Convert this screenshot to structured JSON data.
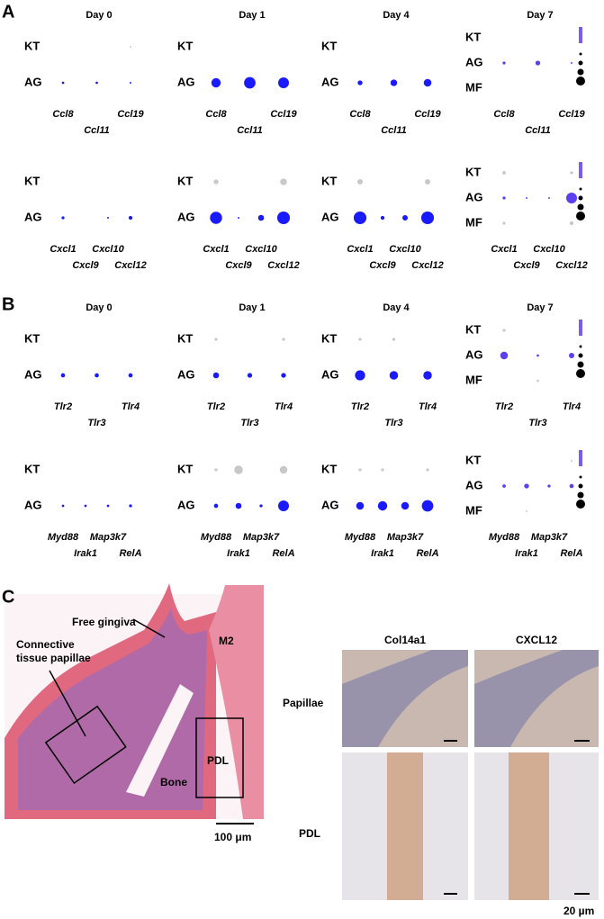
{
  "panels": [
    {
      "label": "A",
      "days": [
        "Day 0",
        "Day 1",
        "Day 4",
        "Day 7"
      ],
      "groups": [
        {
          "genes": [
            "Ccl8",
            "Ccl11",
            "Ccl19"
          ],
          "plots": [
            {
              "rows": [
                "KT",
                "AG"
              ],
              "row_colors": [
                "#c8c8c8",
                "#1a1aff"
              ],
              "pct": [
                [
                  0,
                  0,
                  1
                ],
                [
                  2,
                  2,
                  1
                ]
              ]
            },
            {
              "rows": [
                "KT",
                "AG"
              ],
              "row_colors": [
                "#c8c8c8",
                "#1a1aff"
              ],
              "pct": [
                [
                  0,
                  0,
                  0
                ],
                [
                  30,
                  45,
                  40
                ]
              ]
            },
            {
              "rows": [
                "KT",
                "AG"
              ],
              "row_colors": [
                "#c8c8c8",
                "#1a1aff"
              ],
              "pct": [
                [
                  0,
                  0,
                  0
                ],
                [
                  8,
                  15,
                  20
                ]
              ]
            },
            {
              "rows": [
                "KT",
                "AG",
                "MF"
              ],
              "row_colors": [
                "#c8c8c8",
                "#5b3ff0",
                "#c8c8c8"
              ],
              "pct": [
                [
                  0,
                  0,
                  0
                ],
                [
                  3,
                  8,
                  1
                ],
                [
                  0,
                  0,
                  0
                ]
              ]
            }
          ]
        },
        {
          "genes": [
            "Cxcl1",
            "Cxcl9",
            "Cxcl10",
            "Cxcl12"
          ],
          "plots": [
            {
              "rows": [
                "KT",
                "AG"
              ],
              "row_colors": [
                "#c8c8c8",
                "#1a1aff"
              ],
              "pct": [
                [
                  0,
                  0,
                  0,
                  0
                ],
                [
                  3,
                  0,
                  1,
                  5
                ]
              ]
            },
            {
              "rows": [
                "KT",
                "AG"
              ],
              "row_colors": [
                "#c8c8c8",
                "#1a1aff"
              ],
              "pct": [
                [
                  8,
                  0,
                  0,
                  15
                ],
                [
                  50,
                  1,
                  12,
                  55
                ]
              ]
            },
            {
              "rows": [
                "KT",
                "AG"
              ],
              "row_colors": [
                "#c8c8c8",
                "#1a1aff"
              ],
              "pct": [
                [
                  10,
                  0,
                  0,
                  10
                ],
                [
                  55,
                  5,
                  10,
                  55
                ]
              ]
            },
            {
              "rows": [
                "KT",
                "AG",
                "MF"
              ],
              "row_colors": [
                "#c8c8c8",
                "#5b3ff0",
                "#c8c8c8"
              ],
              "pct": [
                [
                  4,
                  0,
                  0,
                  3
                ],
                [
                  3,
                  1,
                  1,
                  40
                ],
                [
                  3,
                  0,
                  0,
                  5
                ]
              ]
            }
          ]
        }
      ]
    },
    {
      "label": "B",
      "days": [
        "Day 0",
        "Day 1",
        "Day 4",
        "Day 7"
      ],
      "groups": [
        {
          "genes": [
            "Tlr2",
            "Tlr3",
            "Tlr4"
          ],
          "plots": [
            {
              "rows": [
                "KT",
                "AG"
              ],
              "row_colors": [
                "#c8c8c8",
                "#1a1aff"
              ],
              "pct": [
                [
                  0,
                  0,
                  0
                ],
                [
                  6,
                  6,
                  6
                ]
              ]
            },
            {
              "rows": [
                "KT",
                "AG"
              ],
              "row_colors": [
                "#c8c8c8",
                "#1a1aff"
              ],
              "pct": [
                [
                  3,
                  0,
                  3
                ],
                [
                  12,
                  8,
                  8
                ]
              ]
            },
            {
              "rows": [
                "KT",
                "AG"
              ],
              "row_colors": [
                "#c8c8c8",
                "#1a1aff"
              ],
              "pct": [
                [
                  3,
                  3,
                  0
                ],
                [
                  35,
                  25,
                  25
                ]
              ]
            },
            {
              "rows": [
                "KT",
                "AG",
                "MF"
              ],
              "row_colors": [
                "#c8c8c8",
                "#5b3ff0",
                "#c8c8c8"
              ],
              "pct": [
                [
                  3,
                  0,
                  0
                ],
                [
                  20,
                  2,
                  10
                ],
                [
                  0,
                  2,
                  0
                ]
              ]
            }
          ]
        },
        {
          "genes": [
            "Myd88",
            "Irak1",
            "Map3k7",
            "RelA"
          ],
          "plots": [
            {
              "rows": [
                "KT",
                "AG"
              ],
              "row_colors": [
                "#c8c8c8",
                "#1a1aff"
              ],
              "pct": [
                [
                  0,
                  0,
                  0,
                  0
                ],
                [
                  2,
                  2,
                  2,
                  3
                ]
              ]
            },
            {
              "rows": [
                "KT",
                "AG"
              ],
              "row_colors": [
                "#c8c8c8",
                "#1a1aff"
              ],
              "pct": [
                [
                  3,
                  25,
                  0,
                  20
                ],
                [
                  6,
                  12,
                  3,
                  40
                ]
              ]
            },
            {
              "rows": [
                "KT",
                "AG"
              ],
              "row_colors": [
                "#c8c8c8",
                "#1a1aff"
              ],
              "pct": [
                [
                  3,
                  3,
                  0,
                  3
                ],
                [
                  20,
                  30,
                  20,
                  45
                ]
              ]
            },
            {
              "rows": [
                "KT",
                "AG",
                "MF"
              ],
              "row_colors": [
                "#c8c8c8",
                "#5b3ff0",
                "#c8c8c8"
              ],
              "pct": [
                [
                  0,
                  0,
                  0,
                  1
                ],
                [
                  4,
                  8,
                  3,
                  6
                ],
                [
                  0,
                  1,
                  0,
                  0
                ]
              ]
            }
          ]
        }
      ]
    }
  ],
  "panel_c": {
    "label": "C",
    "histology": {
      "free_gingiva": "Free gingiva",
      "papillae": [
        "Connective",
        "tissue papillae"
      ],
      "tooth": "M2",
      "pdl": "PDL",
      "bone": "Bone",
      "scale": "100 μm"
    },
    "ihc": {
      "columns": [
        "Col14a1",
        "CXCL12"
      ],
      "rows": [
        "Papillae",
        "PDL"
      ],
      "scale": "20 µm"
    }
  }
}
